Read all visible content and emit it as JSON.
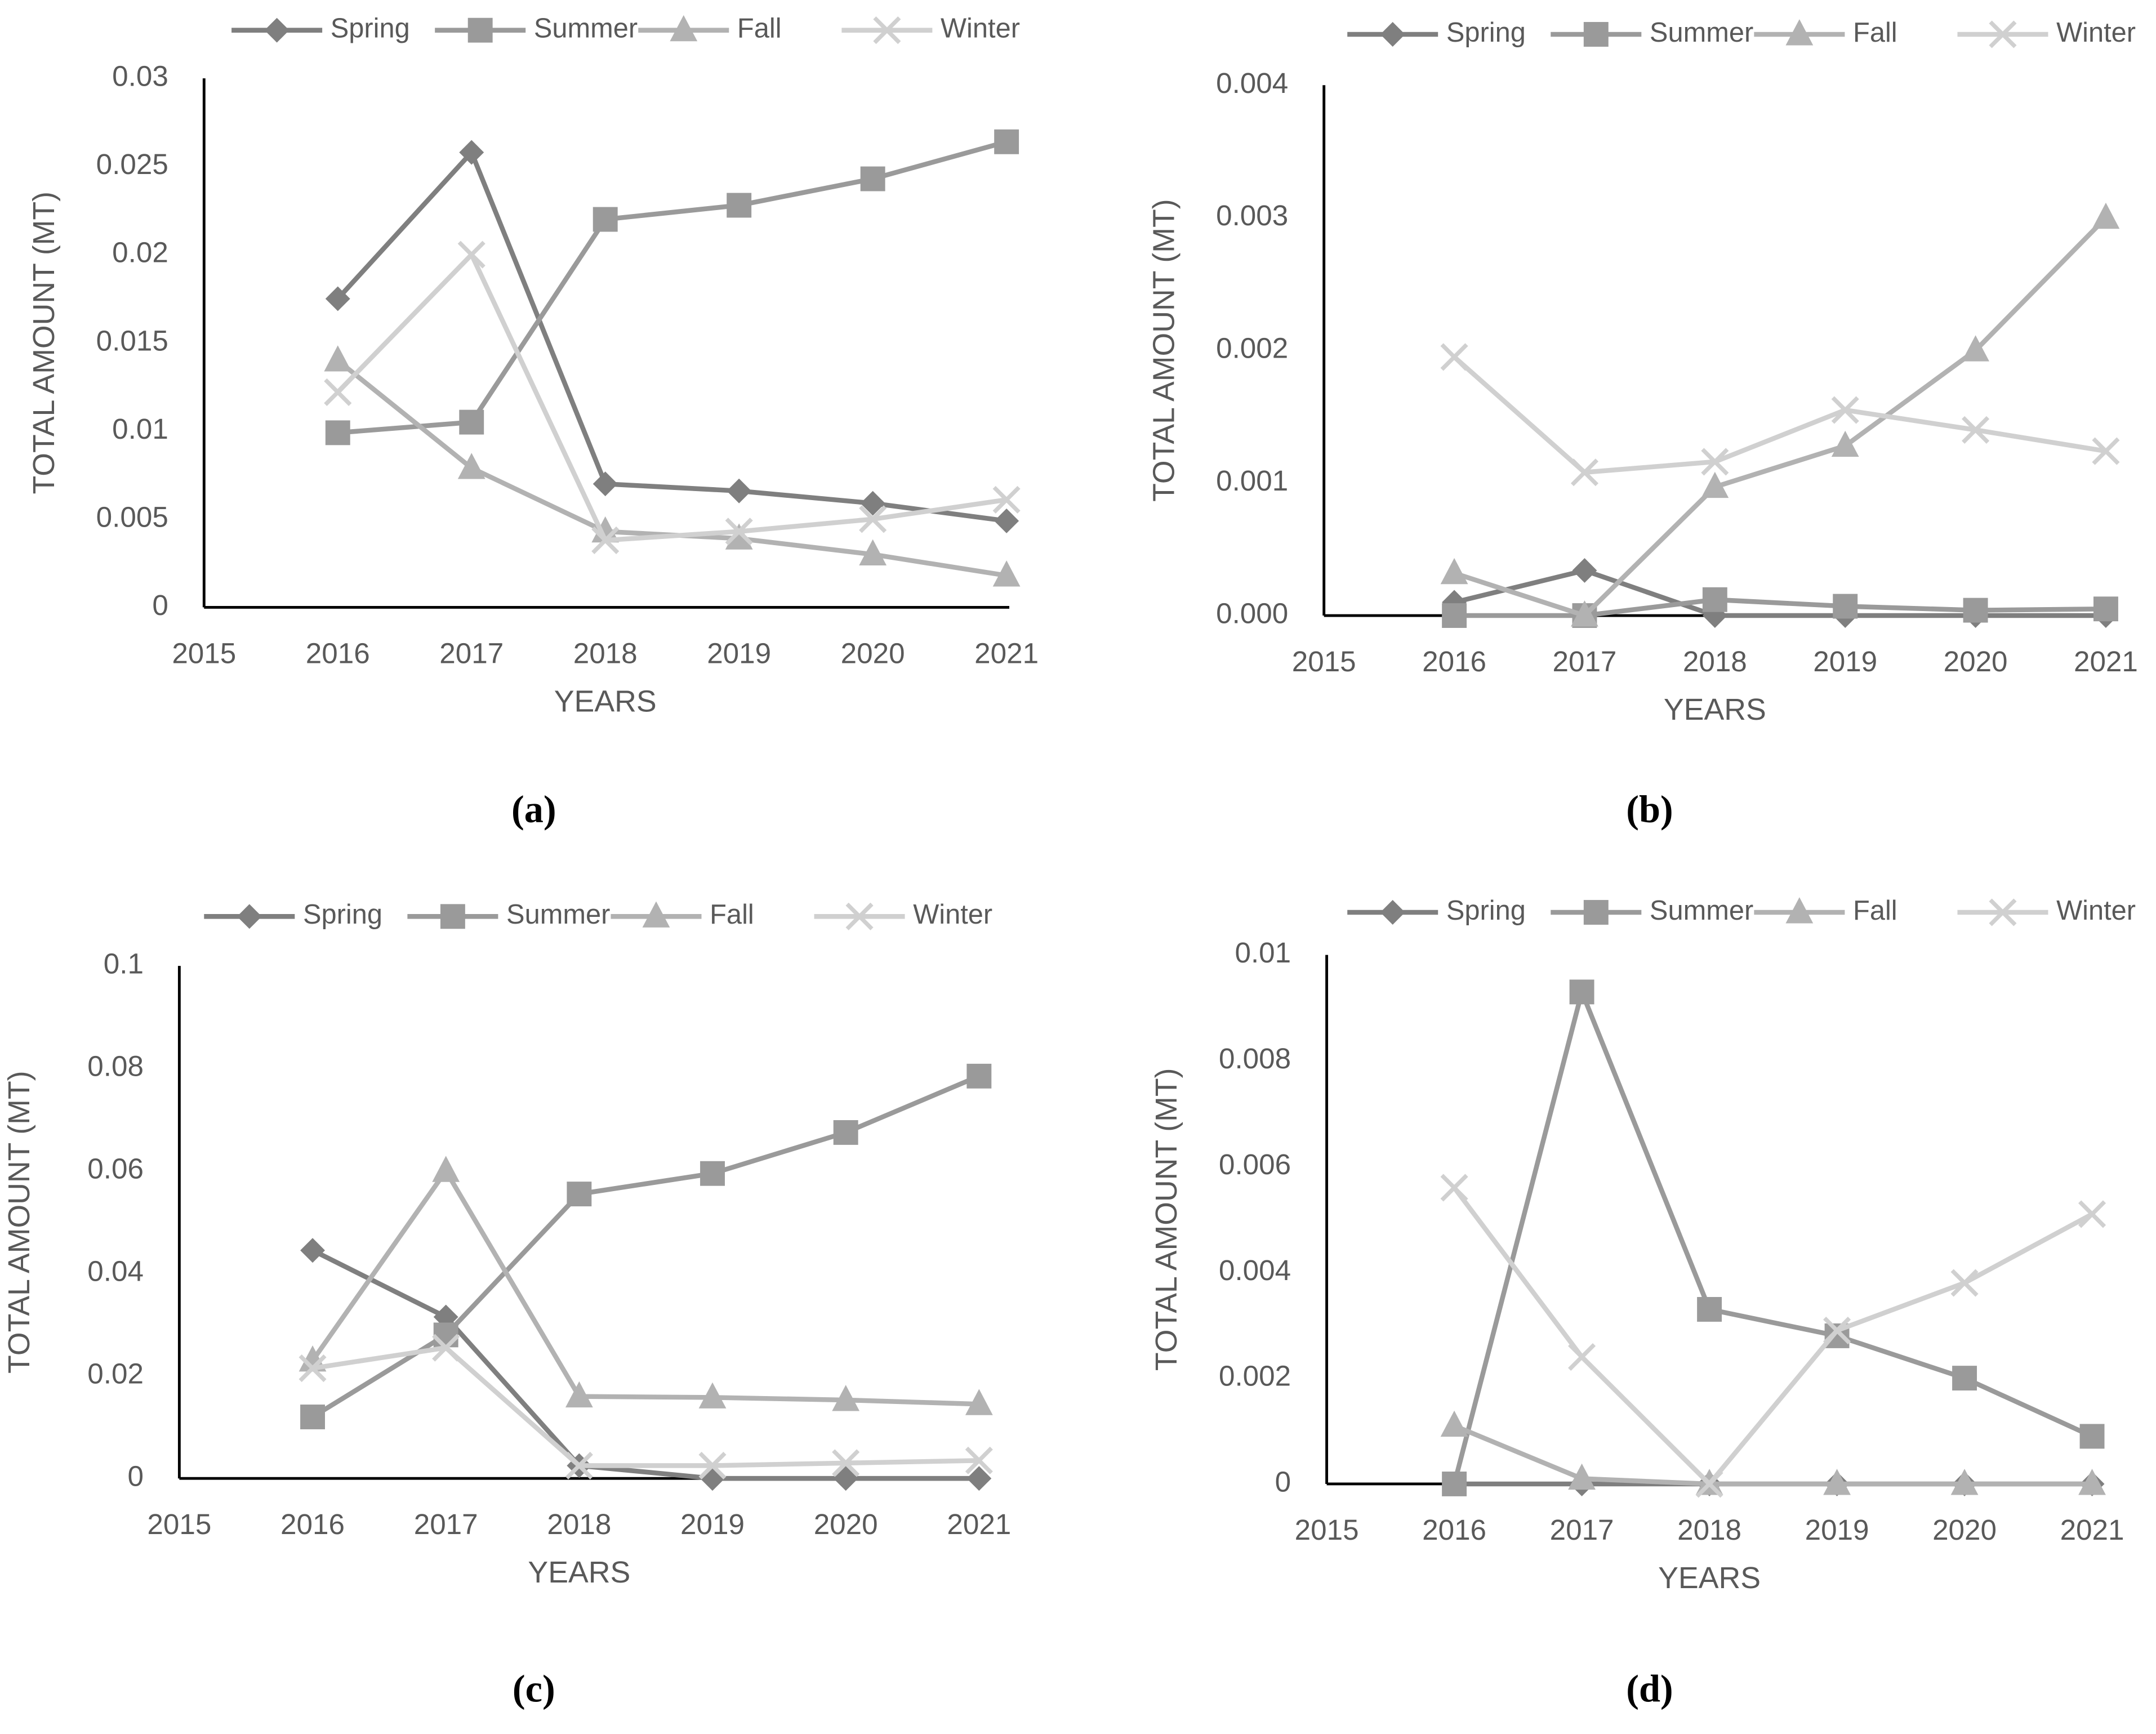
{
  "chart_data": [
    {
      "type": "line",
      "caption": "(a)",
      "x_label": "YEARS",
      "y_label": "TOTAL AMOUNT (MT)",
      "x": [
        2016,
        2017,
        2018,
        2019,
        2020,
        2021
      ],
      "xlim": [
        2015,
        2021
      ],
      "xticks": [
        2015,
        2016,
        2017,
        2018,
        2019,
        2020,
        2021
      ],
      "ylim": [
        0,
        0.03
      ],
      "yticks": [
        0,
        0.005,
        0.01,
        0.015,
        0.02,
        0.025,
        0.03
      ],
      "legend": "top",
      "series": [
        {
          "name": "Spring",
          "color": "#7f7f7f",
          "marker": "diamond",
          "values": [
            0.0175,
            0.0258,
            0.007,
            0.0066,
            0.0059,
            0.0049
          ]
        },
        {
          "name": "Summer",
          "color": "#9a9a9a",
          "marker": "square",
          "values": [
            0.0099,
            0.0105,
            0.022,
            0.0228,
            0.0243,
            0.0264
          ]
        },
        {
          "name": "Fall",
          "color": "#b2b2b2",
          "marker": "triangle",
          "values": [
            0.014,
            0.0079,
            0.0043,
            0.0039,
            0.003,
            0.0018
          ]
        },
        {
          "name": "Winter",
          "color": "#d0d0d0",
          "marker": "x",
          "values": [
            0.0122,
            0.02,
            0.0038,
            0.0043,
            0.005,
            0.0061
          ]
        }
      ]
    },
    {
      "type": "line",
      "caption": "(b)",
      "x_label": "YEARS",
      "y_label": "TOTAL AMOUNT (MT)",
      "x": [
        2016,
        2017,
        2018,
        2019,
        2020,
        2021
      ],
      "xlim": [
        2015,
        2021
      ],
      "xticks": [
        2015,
        2016,
        2017,
        2018,
        2019,
        2020,
        2021
      ],
      "ylim": [
        0,
        0.004
      ],
      "yticks": [
        {
          "value": 0,
          "label": "0.000"
        },
        {
          "value": 0.001,
          "label": "0.001"
        },
        {
          "value": 0.002,
          "label": "0.002"
        },
        {
          "value": 0.003,
          "label": "0.003"
        },
        {
          "value": 0.004,
          "label": "0.004"
        }
      ],
      "legend": "top",
      "series": [
        {
          "name": "Spring",
          "color": "#7f7f7f",
          "marker": "diamond",
          "values": [
            0.0001,
            0.00034,
            0,
            0,
            0,
            0
          ]
        },
        {
          "name": "Summer",
          "color": "#9a9a9a",
          "marker": "square",
          "values": [
            0,
            0,
            0.00012,
            7e-05,
            4e-05,
            5e-05
          ]
        },
        {
          "name": "Fall",
          "color": "#b2b2b2",
          "marker": "triangle",
          "values": [
            0.00032,
            0,
            0.00097,
            0.00128,
            0.002,
            0.003
          ]
        },
        {
          "name": "Winter",
          "color": "#d0d0d0",
          "marker": "x",
          "values": [
            0.00195,
            0.00108,
            0.00116,
            0.00155,
            0.0014,
            0.00124
          ]
        }
      ]
    },
    {
      "type": "line",
      "caption": "(c)",
      "x_label": "YEARS",
      "y_label": "TOTAL AMOUNT (MT)",
      "x": [
        2016,
        2017,
        2018,
        2019,
        2020,
        2021
      ],
      "xlim": [
        2015,
        2021
      ],
      "xticks": [
        2015,
        2016,
        2017,
        2018,
        2019,
        2020,
        2021
      ],
      "ylim": [
        0,
        0.1
      ],
      "yticks": [
        0,
        0.02,
        0.04,
        0.06,
        0.08,
        0.1
      ],
      "legend": "top",
      "series": [
        {
          "name": "Spring",
          "color": "#7f7f7f",
          "marker": "diamond",
          "values": [
            0.0445,
            0.0315,
            0.0025,
            0,
            0,
            0
          ]
        },
        {
          "name": "Summer",
          "color": "#9a9a9a",
          "marker": "square",
          "values": [
            0.012,
            0.028,
            0.0555,
            0.0595,
            0.0675,
            0.0785
          ]
        },
        {
          "name": "Fall",
          "color": "#b2b2b2",
          "marker": "triangle",
          "values": [
            0.023,
            0.06,
            0.016,
            0.0158,
            0.0153,
            0.0145
          ]
        },
        {
          "name": "Winter",
          "color": "#d0d0d0",
          "marker": "x",
          "values": [
            0.0215,
            0.0255,
            0.0025,
            0.0025,
            0.003,
            0.0035
          ]
        }
      ]
    },
    {
      "type": "line",
      "caption": "(d)",
      "x_label": "YEARS",
      "y_label": "TOTAL AMOUNT (MT)",
      "x": [
        2016,
        2017,
        2018,
        2019,
        2020,
        2021
      ],
      "xlim": [
        2015,
        2021
      ],
      "xticks": [
        2015,
        2016,
        2017,
        2018,
        2019,
        2020,
        2021
      ],
      "ylim": [
        0,
        0.01
      ],
      "yticks": [
        0,
        0.002,
        0.004,
        0.006,
        0.008,
        0.01
      ],
      "legend": "top",
      "series": [
        {
          "name": "Spring",
          "color": "#7f7f7f",
          "marker": "diamond",
          "values": [
            0,
            0,
            0,
            0,
            0,
            0
          ]
        },
        {
          "name": "Summer",
          "color": "#9a9a9a",
          "marker": "square",
          "values": [
            0,
            0.0093,
            0.0033,
            0.0028,
            0.002,
            0.0009
          ]
        },
        {
          "name": "Fall",
          "color": "#b2b2b2",
          "marker": "triangle",
          "values": [
            0.0011,
            0.0001,
            0,
            0,
            0,
            0
          ]
        },
        {
          "name": "Winter",
          "color": "#d0d0d0",
          "marker": "x",
          "values": [
            0.0056,
            0.0024,
            0,
            0.0029,
            0.0038,
            0.0051
          ]
        }
      ]
    }
  ]
}
